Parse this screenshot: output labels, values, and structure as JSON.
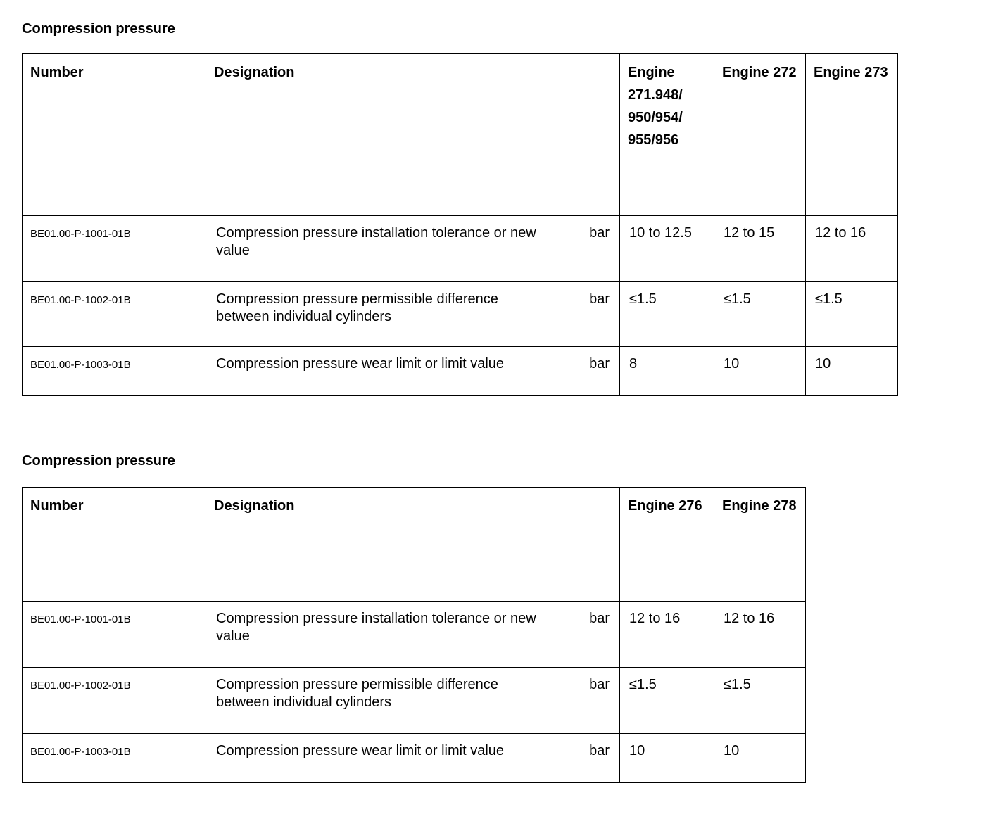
{
  "sections": [
    {
      "title": "Compression pressure",
      "headers": [
        "Number",
        "Designation",
        "Engine 271.948/ 950/954/ 955/956",
        "Engine 272",
        "Engine 273"
      ],
      "rows": [
        {
          "number": "BE01.00-P-1001-01B",
          "designation": "Compression pressure installation tolerance or new value",
          "unit": "bar",
          "values": [
            "10 to 12.5",
            "12 to 15",
            "12 to 16"
          ]
        },
        {
          "number": "BE01.00-P-1002-01B",
          "designation": "Compression pressure permissible difference between individual cylinders",
          "unit": "bar",
          "values": [
            "≤1.5",
            "≤1.5",
            "≤1.5"
          ]
        },
        {
          "number": "BE01.00-P-1003-01B",
          "designation": "Compression pressure wear limit or limit value",
          "unit": "bar",
          "values": [
            "8",
            "10",
            "10"
          ]
        }
      ]
    },
    {
      "title": "Compression pressure",
      "headers": [
        "Number",
        "Designation",
        "Engine 276",
        "Engine 278"
      ],
      "rows": [
        {
          "number": "BE01.00-P-1001-01B",
          "designation": "Compression pressure installation tolerance or new value",
          "unit": "bar",
          "values": [
            "12 to 16",
            "12 to 16"
          ]
        },
        {
          "number": "BE01.00-P-1002-01B",
          "designation": "Compression pressure permissible difference between individual cylinders",
          "unit": "bar",
          "values": [
            "≤1.5",
            "≤1.5"
          ]
        },
        {
          "number": "BE01.00-P-1003-01B",
          "designation": "Compression pressure wear limit or limit value",
          "unit": "bar",
          "values": [
            "10",
            "10"
          ]
        }
      ]
    }
  ]
}
